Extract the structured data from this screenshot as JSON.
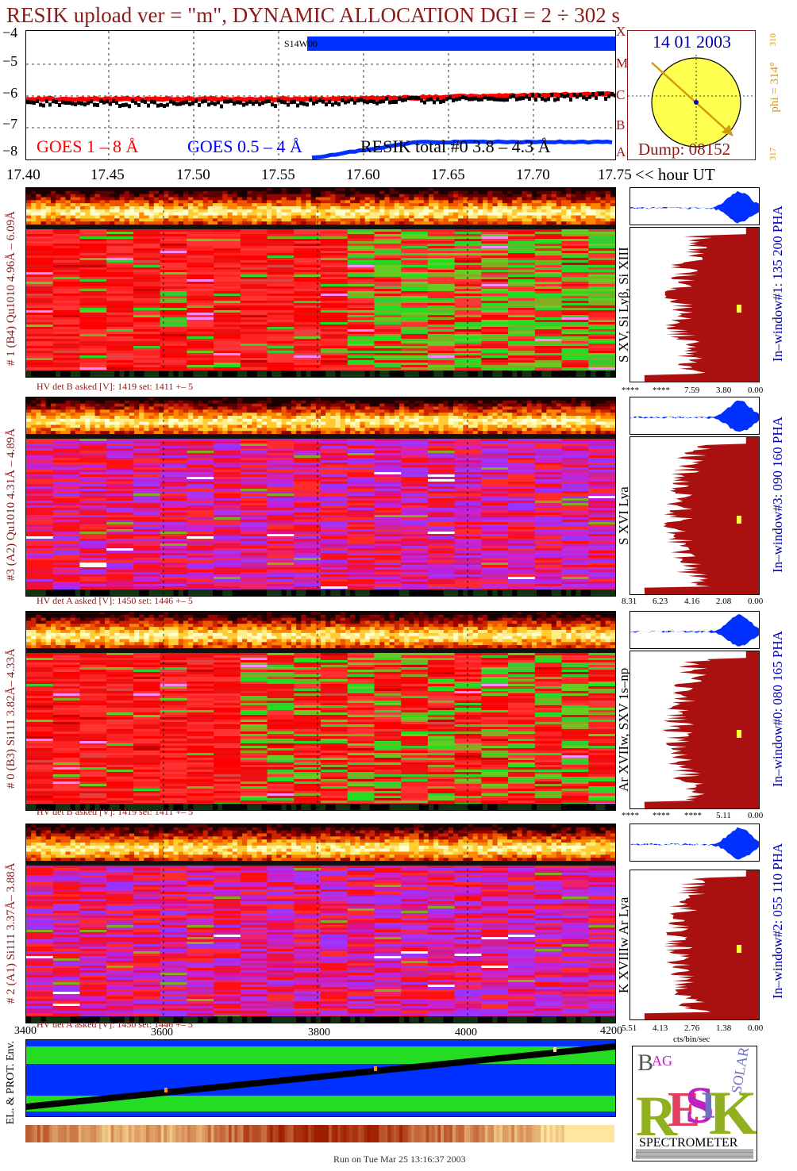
{
  "header": {
    "title": "RESIK upload ver = \"m\", DYNAMIC ALLOCATION  DGI =   2 ÷ 302 s"
  },
  "goes_plot": {
    "y_ticks": [
      "−4",
      "−5",
      "−6",
      "−7",
      "−8"
    ],
    "flare_classes": [
      "X",
      "M",
      "C",
      "B",
      "A"
    ],
    "label_s14": "S14W00",
    "legend_goes1": "GOES 1 – 8 Å",
    "legend_goes05": "GOES 0.5 – 4 Å",
    "legend_resik": "RESIK total #0  3.8 – 4.3 Å",
    "colors": {
      "goes1": "#ff0000",
      "goes05": "#0000ff",
      "resik": "#000000"
    }
  },
  "sun_panel": {
    "date": "14 01 2003",
    "dump": "Dump: 08152",
    "phi": "phi = 314°",
    "phi_sup": "310",
    "phi_sub": "317"
  },
  "time_axis": {
    "ticks": [
      "17.40",
      "17.45",
      "17.50",
      "17.55",
      "17.60",
      "17.65",
      "17.70",
      "17.75"
    ],
    "unit": "<< hour UT"
  },
  "panels": [
    {
      "id": "ch1",
      "left_label": "# 1 (B4) Qu1010 4.96Å – 6.09Å",
      "line_label": "S XV, Si Lyβ, Si XIII",
      "window_label": "In–window#1:  135 200 PHA",
      "hv": "HV det B asked [V]:  1419 set:  1411  +–    5",
      "pha_ticks": [
        "****",
        "****",
        "7.59",
        "3.80",
        "0.00"
      ],
      "scheme": "green"
    },
    {
      "id": "ch3",
      "left_label": "#3 (A2) Qu1010  4.31Å – 4.89Å",
      "line_label": "S XVI Lya",
      "window_label": "In–window#3:  090 160 PHA",
      "hv": "HV det A asked [V]:  1450 set:  1446  +–    5",
      "pha_ticks": [
        "8.31",
        "6.23",
        "4.16",
        "2.08",
        "0.00"
      ],
      "scheme": "purple"
    },
    {
      "id": "ch0",
      "left_label": "# 0 (B3) Si111  3.82Å– 4.33Å",
      "line_label": "Ar XVIIw, SXV 1s–np",
      "window_label": "In–window#0:  080 165 PHA",
      "hv": "HV det B asked [V]:  1419 set:  1411  +–    5",
      "pha_ticks": [
        "****",
        "****",
        "****",
        "5.11",
        "0.00"
      ],
      "scheme": "green2"
    },
    {
      "id": "ch2",
      "left_label": "# 2 (A1) Si111  3.37Å–  3.88Å",
      "line_label": "K XVIIIw  Ar Lya",
      "window_label": "In–window#2:  055 110 PHA",
      "hv": "HV det A asked [V]:  1450 set:  1446  +–    5",
      "pha_ticks": [
        "5.51",
        "4.13",
        "2.76",
        "1.38",
        "0.00"
      ],
      "pha_unit": "cts/bin/sec",
      "scheme": "purple2"
    }
  ],
  "env_panel": {
    "axis_ticks": [
      "3400",
      "3600",
      "3800",
      "4000",
      "4200"
    ],
    "label": "EL. & PROT. Env."
  },
  "logo": {
    "letters": "RESIK",
    "sub_letters": [
      "B",
      "AG",
      "S",
      "O",
      "L",
      "AR"
    ],
    "caption": "SPECTROMETER"
  },
  "footer": {
    "run": "Run on Tue Mar 25 13:16:37 2003"
  }
}
